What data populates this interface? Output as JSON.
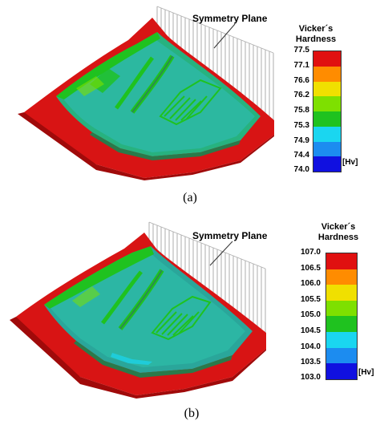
{
  "panels": [
    {
      "caption": "(a)",
      "annotation": "Symmetry Plane",
      "legend_title_1": "Vicker´s",
      "legend_title_2": "Hardness",
      "unit": "[Hv]",
      "ticks": [
        "77.5",
        "77.1",
        "76.6",
        "76.2",
        "75.8",
        "75.3",
        "74.9",
        "74.4",
        "74.0"
      ]
    },
    {
      "caption": "(b)",
      "annotation": "Symmetry Plane",
      "legend_title_1": "Vicker´s",
      "legend_title_2": "Hardness",
      "unit": "[Hv]",
      "ticks": [
        "107.0",
        "106.5",
        "106.0",
        "105.5",
        "105.0",
        "104.5",
        "104.0",
        "103.5",
        "103.0"
      ]
    }
  ],
  "colors": [
    "#e01010",
    "#ff8c00",
    "#f0e000",
    "#7ee000",
    "#1fc21f",
    "#28d8a8",
    "#1ad6f0",
    "#1c8cf0",
    "#1010e0"
  ]
}
